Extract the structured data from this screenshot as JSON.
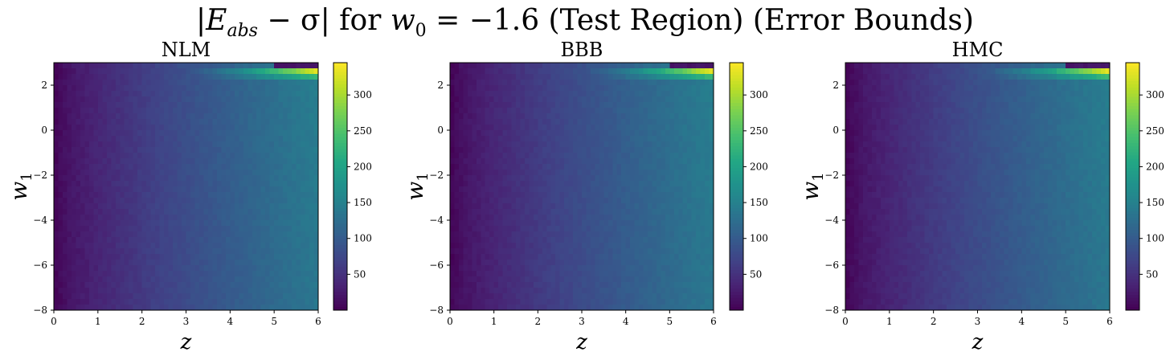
{
  "figure": {
    "title": "|E_abs − σ| for w_0 = −1.6 (Test Region) (Error Bounds)",
    "title_parts": {
      "lead": "|",
      "e": "E",
      "e_sub": "abs",
      "minus_sigma": " − σ| for ",
      "w": "w",
      "w_sub": "0",
      "rest": " = −1.6 (Test Region) (Error Bounds)"
    },
    "colormap": "viridis",
    "accent_colors": [
      "#440154",
      "#3b528b",
      "#21918c",
      "#5ec962",
      "#fde725"
    ]
  },
  "chart_data": [
    {
      "type": "heatmap",
      "title": "NLM",
      "xlabel": "z",
      "ylabel": "w_1",
      "ylabel_parts": {
        "base": "w",
        "sub": "1"
      },
      "xlim": [
        0,
        6
      ],
      "ylim": [
        -8,
        3
      ],
      "x_ticks": [
        0,
        1,
        2,
        3,
        4,
        5,
        6
      ],
      "y_ticks": [
        -8,
        -6,
        -4,
        -2,
        0,
        2
      ],
      "y_tick_labels": [
        "−8",
        "−6",
        "−4",
        "−2",
        "0",
        "2"
      ],
      "colorbar": {
        "min": 0,
        "max": 345,
        "ticks": [
          50,
          100,
          150,
          200,
          250,
          300
        ]
      },
      "description_of_values": "low (~10-40) near z=0, rising roughly linearly to ~150 at z=6; sharp peak (~340) near w1≈2.5, z≈5-6"
    },
    {
      "type": "heatmap",
      "title": "BBB",
      "xlabel": "z",
      "ylabel": "w_1",
      "ylabel_parts": {
        "base": "w",
        "sub": "1"
      },
      "xlim": [
        0,
        6
      ],
      "ylim": [
        -8,
        3
      ],
      "x_ticks": [
        0,
        1,
        2,
        3,
        4,
        5,
        6
      ],
      "y_ticks": [
        -8,
        -6,
        -4,
        -2,
        0,
        2
      ],
      "y_tick_labels": [
        "−8",
        "−6",
        "−4",
        "−2",
        "0",
        "2"
      ],
      "colorbar": {
        "min": 0,
        "max": 345,
        "ticks": [
          50,
          100,
          150,
          200,
          250,
          300
        ]
      },
      "description_of_values": "low near z=0, rising to ~150 at z=6; peak (~340) near w1≈2.5, z≈5-6"
    },
    {
      "type": "heatmap",
      "title": "HMC",
      "xlabel": "z",
      "ylabel": "w_1",
      "ylabel_parts": {
        "base": "w",
        "sub": "1"
      },
      "xlim": [
        0,
        6
      ],
      "ylim": [
        -8,
        3
      ],
      "x_ticks": [
        0,
        1,
        2,
        3,
        4,
        5,
        6
      ],
      "y_ticks": [
        -8,
        -6,
        -4,
        -2,
        0,
        2
      ],
      "y_tick_labels": [
        "−8",
        "−6",
        "−4",
        "−2",
        "0",
        "2"
      ],
      "colorbar": {
        "min": 0,
        "max": 345,
        "ticks": [
          50,
          100,
          150,
          200,
          250,
          300
        ]
      },
      "description_of_values": "low near z=0, rising to ~150 at z=6; peak (~340) near w1≈2.5, z≈5-6"
    }
  ]
}
